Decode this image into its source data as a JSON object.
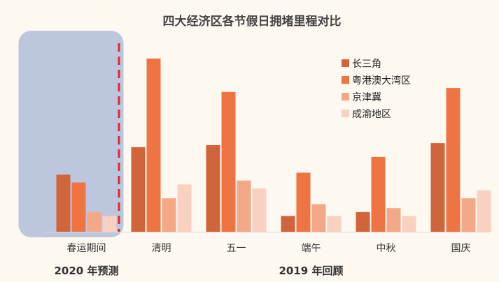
{
  "chart_data": {
    "type": "bar",
    "title": "四大经济区各节假日拥堵里程对比",
    "categories": [
      "春运期间",
      "清明",
      "五一",
      "端午",
      "中秋",
      "国庆"
    ],
    "series": [
      {
        "name": "长三角",
        "color": "#d0643a",
        "values": [
          29,
          43,
          44,
          8,
          10,
          45
        ]
      },
      {
        "name": "粤港澳大湾区",
        "color": "#ee7543",
        "values": [
          25,
          88,
          71,
          30,
          38,
          73
        ]
      },
      {
        "name": "京津冀",
        "color": "#f3a887",
        "values": [
          10,
          17,
          26,
          14,
          12,
          17
        ]
      },
      {
        "name": "成渝地区",
        "color": "#f8d1c1",
        "values": [
          8,
          24,
          22,
          8,
          8,
          21
        ]
      }
    ],
    "ylim": [
      0,
      100
    ],
    "xlabel": "",
    "ylabel": "",
    "grid": false,
    "legend_position": "top-right",
    "group_labels": [
      {
        "text": "2020 年预测",
        "categories": [
          0
        ]
      },
      {
        "text": "2019 年回顾",
        "categories": [
          1,
          2,
          3,
          4,
          5
        ]
      }
    ],
    "highlight": {
      "categories": [
        0
      ],
      "fill": "#bcc7de",
      "divider_color": "#e3262b"
    }
  }
}
